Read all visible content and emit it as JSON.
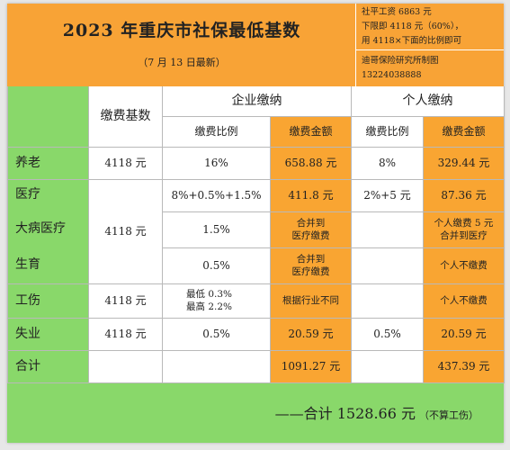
{
  "header": {
    "title": "2023 年重庆市社保最低基数",
    "subtitle": "（7 月 13 日最新）",
    "notes": {
      "line1": "社平工资 6863 元",
      "line2": "下限即 4118 元（60%），",
      "line3": "用 4118×下面的比例即可"
    },
    "credit": {
      "line1": "迪哥保险研究所制图",
      "line2": "13224038888"
    }
  },
  "table": {
    "headers": {
      "base": "缴费基数",
      "company": "企业缴纳",
      "personal": "个人缴纳",
      "rate": "缴费比例",
      "amount": "缴费金额"
    },
    "rows": {
      "pension": {
        "label": "养老",
        "base": "4118 元",
        "company_rate": "16%",
        "company_amount": "658.88 元",
        "personal_rate": "8%",
        "personal_amount": "329.44 元"
      },
      "medical": {
        "label": "医疗",
        "company_rate": "8%+0.5%+1.5%",
        "company_amount": "411.8 元",
        "personal_rate": "2%+5 元",
        "personal_amount": "87.36 元"
      },
      "serious": {
        "label": "大病医疗",
        "company_rate": "1.5%",
        "company_amount_l1": "合并到",
        "company_amount_l2": "医疗缴费",
        "personal_amount_l1": "个人缴费 5 元",
        "personal_amount_l2": "合并到医疗"
      },
      "maternity": {
        "label": "生育",
        "company_rate": "0.5%",
        "company_amount_l1": "合并到",
        "company_amount_l2": "医疗缴费",
        "personal_amount": "个人不缴费"
      },
      "medical_group_base": "4118 元",
      "injury": {
        "label": "工伤",
        "base": "4118 元",
        "company_rate_l1": "最低 0.3%",
        "company_rate_l2": "最高 2.2%",
        "company_amount": "根据行业不同",
        "personal_amount": "个人不缴费"
      },
      "unemployment": {
        "label": "失业",
        "base": "4118 元",
        "company_rate": "0.5%",
        "company_amount": "20.59 元",
        "personal_rate": "0.5%",
        "personal_amount": "20.59 元"
      },
      "total": {
        "label": "合计",
        "company_amount": "1091.27 元",
        "personal_amount": "437.39 元"
      }
    },
    "grand_total": {
      "text": "——合计 1528.66 元",
      "note": "（不算工伤）"
    }
  },
  "colors": {
    "orange": "#f8a336",
    "green": "#89d86a",
    "grid": "#b9b9b9"
  }
}
